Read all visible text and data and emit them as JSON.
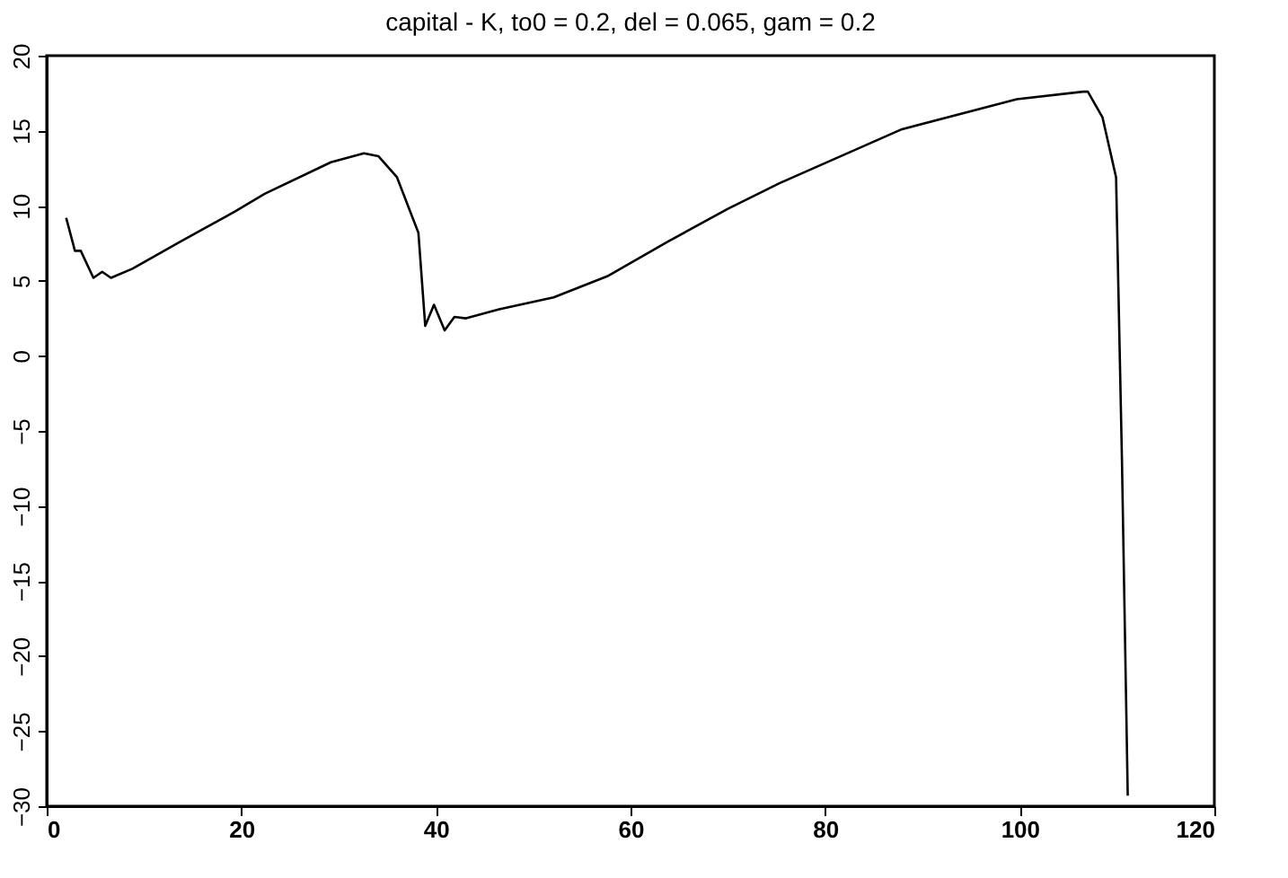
{
  "chart_data": {
    "type": "line",
    "title": "capital - K, to0 = 0.2, del = 0.065, gam = 0.2",
    "x": [
      2.0,
      2.9,
      3.5,
      4.8,
      5.7,
      6.6,
      8.8,
      13.7,
      19.3,
      22.4,
      29.2,
      32.6,
      34.1,
      36.0,
      38.2,
      38.9,
      39.8,
      40.9,
      41.9,
      43.1,
      46.5,
      52.1,
      57.6,
      63.8,
      70.0,
      75.3,
      87.9,
      99.7,
      106.5,
      107.0,
      108.5,
      109.9,
      110.5,
      111.1
    ],
    "series": [
      {
        "color": "#000000",
        "values": [
          9.2,
          7.0,
          7.0,
          5.2,
          5.6,
          5.2,
          5.8,
          7.6,
          9.6,
          10.8,
          12.9,
          13.5,
          13.3,
          11.9,
          8.2,
          2.0,
          3.4,
          1.7,
          2.6,
          2.5,
          3.1,
          3.9,
          5.3,
          7.6,
          9.8,
          11.5,
          15.1,
          17.1,
          17.6,
          17.6,
          15.9,
          11.9,
          -6.8,
          -29.3
        ]
      }
    ],
    "xlim": [
      0,
      120
    ],
    "xticks": [
      0,
      20,
      40,
      60,
      80,
      100,
      120
    ],
    "ylim": [
      -30,
      20
    ],
    "yticks": [
      -30,
      -25,
      -20,
      -15,
      -10,
      -5,
      0,
      5,
      10,
      15,
      20
    ],
    "grid": false,
    "legend": false,
    "marker": "none",
    "line_style": "solid"
  }
}
